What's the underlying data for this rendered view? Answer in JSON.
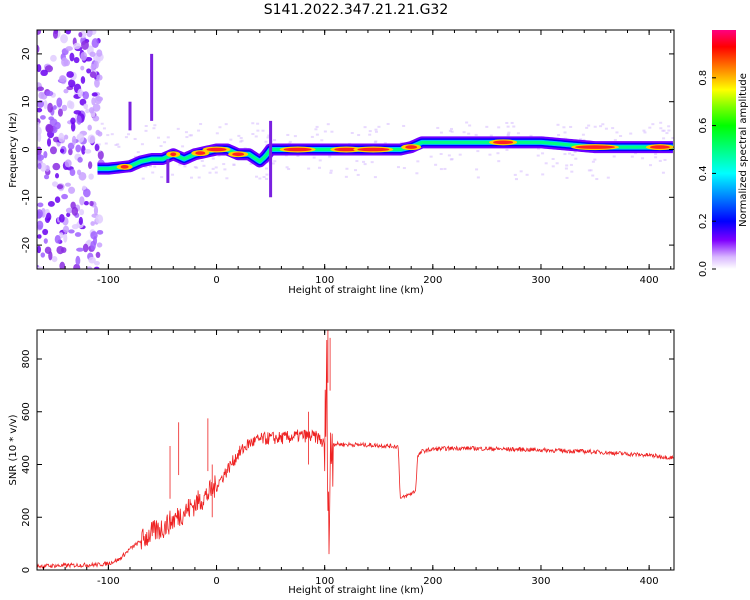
{
  "title": "S141.2022.347.21.21.G32",
  "chart_data": [
    {
      "type": "heatmap",
      "xlabel": "Height of straight line (km)",
      "ylabel": "Frequency (Hz)",
      "xlim": [
        -166,
        423
      ],
      "ylim": [
        -25,
        25
      ],
      "x_ticks": [
        -100,
        0,
        100,
        200,
        300,
        400
      ],
      "y_ticks": [
        -20,
        -10,
        0,
        10,
        20
      ],
      "colorbar": {
        "label": "Normalized spectral amplitude",
        "range": [
          0,
          1
        ],
        "ticks": [
          "0.0",
          "0.2",
          "0.4",
          "0.6",
          "0.8"
        ],
        "tick_values": [
          0,
          0.2,
          0.4,
          0.6,
          0.8
        ]
      },
      "ridge": {
        "x": [
          -110,
          -100,
          -80,
          -70,
          -60,
          -50,
          -40,
          -30,
          -20,
          -10,
          0,
          10,
          20,
          30,
          40,
          45,
          50,
          60,
          80,
          100,
          120,
          150,
          170,
          180,
          190,
          200,
          250,
          300,
          350,
          400,
          423
        ],
        "y": [
          -4,
          -4,
          -3.5,
          -2.5,
          -2,
          -2,
          -1,
          -2,
          -1,
          -0.5,
          0,
          0,
          -1,
          -1,
          -2.5,
          -1.5,
          0,
          0,
          0,
          0,
          0,
          0,
          0,
          0.5,
          1.5,
          1.5,
          1.5,
          1.5,
          0.5,
          0.5,
          0.5
        ]
      }
    },
    {
      "type": "line",
      "xlabel": "Height of straight line (km)",
      "ylabel": "SNR (10 * v/v)",
      "xlim": [
        -166,
        423
      ],
      "ylim": [
        0,
        910
      ],
      "x_ticks": [
        -100,
        0,
        100,
        200,
        300,
        400
      ],
      "y_ticks": [
        0,
        200,
        400,
        600,
        800
      ],
      "color": "#ee2222",
      "series": [
        {
          "x": [
            -166,
            -130,
            -110,
            -100,
            -90,
            -80,
            -70,
            -60,
            -50,
            -40,
            -30,
            -20,
            -10,
            0,
            10,
            20,
            30,
            40,
            50,
            60,
            70,
            80,
            90,
            95,
            100,
            102,
            104,
            106,
            110,
            120,
            140,
            160,
            168,
            170,
            175,
            180,
            184,
            186,
            190,
            200,
            220,
            250,
            300,
            350,
            400,
            423
          ],
          "y": [
            15,
            18,
            20,
            25,
            40,
            80,
            110,
            140,
            160,
            190,
            220,
            250,
            280,
            320,
            380,
            440,
            480,
            495,
            500,
            500,
            505,
            510,
            505,
            500,
            470,
            700,
            120,
            480,
            478,
            476,
            474,
            470,
            468,
            270,
            280,
            290,
            300,
            430,
            450,
            458,
            462,
            460,
            455,
            448,
            435,
            425
          ]
        }
      ]
    }
  ]
}
